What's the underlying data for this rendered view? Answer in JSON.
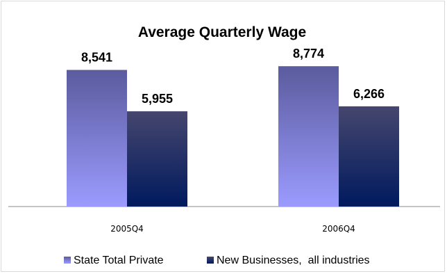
{
  "chart_data": {
    "type": "bar",
    "title": "Average Quarterly Wage",
    "categories": [
      "2005Q4",
      "2006Q4"
    ],
    "series": [
      {
        "name": "State Total Private",
        "values": [
          8541,
          8774
        ],
        "labels": [
          "8,541",
          "8,774"
        ],
        "color_top": "#5b5b9e",
        "color_bottom": "#9b9bff"
      },
      {
        "name": "New Businesses,  all industries",
        "values": [
          5955,
          6266
        ],
        "labels": [
          "5,955",
          "6,266"
        ],
        "color_top": "#46466e",
        "color_bottom": "#001a5e"
      }
    ],
    "ylim": [
      0,
      10000
    ],
    "grid": false,
    "legend_position": "bottom"
  }
}
